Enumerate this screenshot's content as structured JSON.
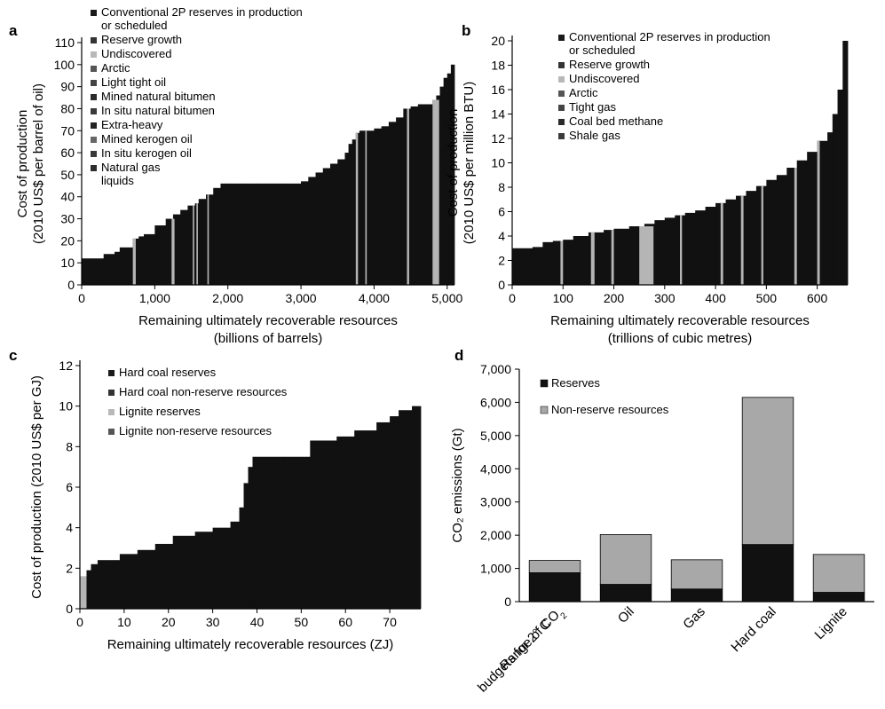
{
  "chart_data": [
    {
      "panel": "a",
      "type": "bar",
      "subtype": "cost-supply-curve",
      "xlabel": [
        "Remaining ultimately recoverable resources",
        "(billions of barrels)"
      ],
      "ylabel": [
        "Cost of production",
        "(2010 US$ per barrel of oil)"
      ],
      "xlim": [
        0,
        5100
      ],
      "ylim": [
        0,
        110
      ],
      "xticks": [
        0,
        1000,
        2000,
        3000,
        4000,
        5000
      ],
      "xtick_labels": [
        "0",
        "1,000",
        "2,000",
        "3,000",
        "4,000",
        "5,000"
      ],
      "yticks": [
        0,
        10,
        20,
        30,
        40,
        50,
        60,
        70,
        80,
        90,
        100,
        110
      ],
      "legend": [
        "Conventional 2P reserves in production or scheduled",
        "Reserve growth",
        "Undiscovered",
        "Arctic",
        "Light tight oil",
        "Mined natural bitumen",
        "In situ natural bitumen",
        "Extra-heavy",
        "Mined kerogen oil",
        "In situ kerogen oil",
        "Natural gas liquids"
      ],
      "legend_lines": [
        [
          "Conventional 2P reserves in production",
          "or scheduled"
        ],
        [
          "Reserve growth"
        ],
        [
          "Undiscovered"
        ],
        [
          "Arctic"
        ],
        [
          "Light tight oil"
        ],
        [
          "Mined natural bitumen"
        ],
        [
          "In situ natural bitumen"
        ],
        [
          "Extra-heavy"
        ],
        [
          "Mined kerogen oil"
        ],
        [
          "In situ kerogen oil"
        ],
        [
          "Natural gas",
          "liquids"
        ]
      ],
      "legend_placement": "top-left",
      "curve": {
        "x": [
          0,
          140,
          300,
          450,
          520,
          700,
          780,
          850,
          1000,
          1150,
          1250,
          1350,
          1450,
          1550,
          1600,
          1700,
          1800,
          1900,
          2000,
          2200,
          2400,
          2600,
          2800,
          3000,
          3100,
          3200,
          3300,
          3400,
          3500,
          3600,
          3650,
          3700,
          3750,
          3800,
          3900,
          4000,
          4100,
          4200,
          4300,
          4400,
          4500,
          4600,
          4700,
          4800,
          4850,
          4900,
          4950,
          5000,
          5050
        ],
        "y": [
          12,
          12,
          14,
          15,
          17,
          21,
          22,
          23,
          27,
          30,
          32,
          34,
          36,
          37,
          39,
          41,
          44,
          46,
          46,
          46,
          46,
          46,
          46,
          47,
          49,
          51,
          53,
          55,
          57,
          60,
          64,
          66,
          69,
          70,
          70,
          71,
          72,
          74,
          76,
          80,
          81,
          82,
          82,
          84,
          86,
          90,
          94,
          96,
          100
        ]
      },
      "light_stripes": [
        [
          700,
          740
        ],
        [
          1230,
          1270
        ],
        [
          1520,
          1540
        ],
        [
          1570,
          1590
        ],
        [
          1720,
          1740
        ],
        [
          3750,
          3780
        ],
        [
          3880,
          3900
        ],
        [
          4450,
          4480
        ],
        [
          4800,
          4890
        ]
      ]
    },
    {
      "panel": "b",
      "type": "bar",
      "subtype": "cost-supply-curve",
      "xlabel": [
        "Remaining ultimately recoverable resources",
        "(trillions of cubic metres)"
      ],
      "ylabel": [
        "Cost of production",
        "(2010 US$ per million BTU)"
      ],
      "xlim": [
        0,
        660
      ],
      "ylim": [
        0,
        20
      ],
      "xticks": [
        0,
        100,
        200,
        300,
        400,
        500,
        600
      ],
      "xtick_labels": [
        "0",
        "100",
        "200",
        "300",
        "400",
        "500",
        "600"
      ],
      "yticks": [
        0,
        2,
        4,
        6,
        8,
        10,
        12,
        14,
        16,
        18,
        20
      ],
      "legend": [
        "Conventional 2P reserves in production or scheduled",
        "Reserve growth",
        "Undiscovered",
        "Arctic",
        "Tight gas",
        "Coal bed methane",
        "Shale gas"
      ],
      "legend_lines": [
        [
          "Conventional 2P reserves in production",
          "or scheduled"
        ],
        [
          "Reserve growth"
        ],
        [
          "Undiscovered"
        ],
        [
          "Arctic"
        ],
        [
          "Tight gas"
        ],
        [
          "Coal bed methane"
        ],
        [
          "Shale gas"
        ]
      ],
      "legend_placement": "top-left",
      "curve": {
        "x": [
          0,
          40,
          60,
          80,
          100,
          120,
          150,
          180,
          200,
          230,
          260,
          280,
          300,
          320,
          340,
          360,
          380,
          400,
          420,
          440,
          460,
          480,
          500,
          520,
          540,
          560,
          580,
          600,
          620,
          630,
          640,
          650
        ],
        "y": [
          3.0,
          3.1,
          3.5,
          3.6,
          3.7,
          4.0,
          4.3,
          4.5,
          4.6,
          4.8,
          5.0,
          5.3,
          5.5,
          5.7,
          5.9,
          6.1,
          6.4,
          6.7,
          7.0,
          7.3,
          7.7,
          8.1,
          8.6,
          9.0,
          9.6,
          10.2,
          10.9,
          11.8,
          12.5,
          14.0,
          16.0,
          20.0
        ]
      },
      "light_stripes": [
        [
          95,
          100
        ],
        [
          155,
          162
        ],
        [
          195,
          200
        ],
        [
          250,
          278
        ],
        [
          330,
          334
        ],
        [
          410,
          415
        ],
        [
          450,
          455
        ],
        [
          490,
          494
        ],
        [
          555,
          560
        ],
        [
          600,
          605
        ]
      ]
    },
    {
      "panel": "c",
      "type": "bar",
      "subtype": "cost-supply-curve",
      "xlabel": [
        "Remaining ultimately recoverable resources (ZJ)"
      ],
      "ylabel": [
        "Cost of production (2010 US$ per GJ)"
      ],
      "xlim": [
        0,
        77
      ],
      "ylim": [
        0,
        12
      ],
      "xticks": [
        0,
        10,
        20,
        30,
        40,
        50,
        60,
        70
      ],
      "xtick_labels": [
        "0",
        "10",
        "20",
        "30",
        "40",
        "50",
        "60",
        "70"
      ],
      "yticks": [
        0,
        2,
        4,
        6,
        8,
        10,
        12
      ],
      "legend": [
        "Hard coal reserves",
        "Hard coal non-reserve resources",
        "Lignite reserves",
        "Lignite non-reserve resources"
      ],
      "legend_lines": [
        [
          "Hard coal reserves"
        ],
        [
          "Hard coal non-reserve resources"
        ],
        [
          "Lignite reserves"
        ],
        [
          "Lignite non-reserve resources"
        ]
      ],
      "legend_placement": "top-left",
      "curve": {
        "x": [
          0,
          1.5,
          2.5,
          4,
          9,
          13,
          17,
          21,
          26,
          30,
          34,
          36,
          37,
          38,
          39,
          46,
          52,
          58,
          62,
          67,
          70,
          72,
          75
        ],
        "y": [
          1.6,
          1.9,
          2.2,
          2.4,
          2.7,
          2.9,
          3.2,
          3.6,
          3.8,
          4.0,
          4.3,
          5.0,
          6.2,
          7.0,
          7.5,
          7.5,
          8.3,
          8.5,
          8.8,
          9.2,
          9.5,
          9.8,
          10.0
        ]
      },
      "light_stripes": [
        [
          0,
          1.5
        ]
      ]
    },
    {
      "panel": "d",
      "type": "bar",
      "subtype": "stacked",
      "categories": [
        "Range of CO2 budgets for 2° C",
        "Oil",
        "Gas",
        "Hard coal",
        "Lignite"
      ],
      "category_lines": [
        [
          "Range of CO",
          "budgets for 2° C"
        ],
        [
          "Oil"
        ],
        [
          "Gas"
        ],
        [
          "Hard coal"
        ],
        [
          "Lignite"
        ]
      ],
      "series": [
        {
          "name": "Reserves",
          "values": [
            870,
            520,
            380,
            1720,
            280
          ],
          "color": "#111111"
        },
        {
          "name": "Non-reserve resources",
          "values": [
            370,
            1500,
            880,
            4430,
            1140
          ],
          "color": "#a8a8a8"
        }
      ],
      "ylabel": "CO₂ emissions (Gt)",
      "ylim": [
        0,
        7000
      ],
      "yticks": [
        0,
        1000,
        2000,
        3000,
        4000,
        5000,
        6000,
        7000
      ],
      "ytick_labels": [
        "0",
        "1,000",
        "2,000",
        "3,000",
        "4,000",
        "5,000",
        "6,000",
        "7,000"
      ],
      "legend_placement": "top-left"
    }
  ],
  "panel_letters": [
    "a",
    "b",
    "c",
    "d"
  ],
  "colors": {
    "dark": "#111111",
    "light": "#b5b5b5",
    "mid": "#8a8a8a",
    "axis": "#000000"
  }
}
